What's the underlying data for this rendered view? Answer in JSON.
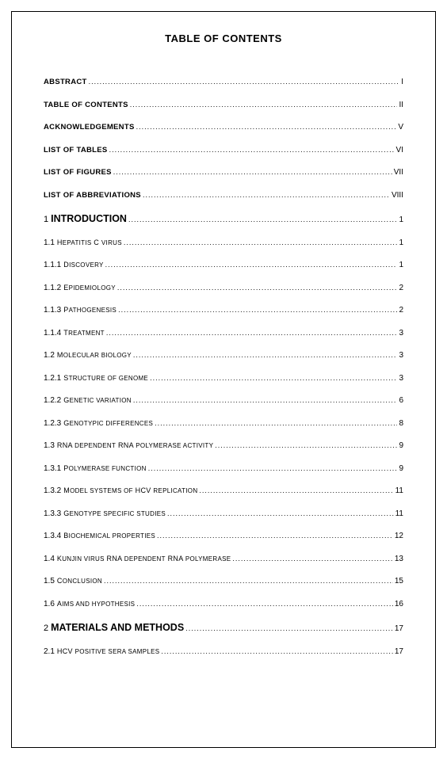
{
  "title": "TABLE OF CONTENTS",
  "entries": [
    {
      "label_html": "<span class='front'>ABSTRACT</span>",
      "page": "I"
    },
    {
      "label_html": "<span class='front'>TABLE OF CONTENTS</span>",
      "page": "II"
    },
    {
      "label_html": "<span class='front'>ACKNOWLEDGEMENTS</span>",
      "page": "V"
    },
    {
      "label_html": "<span class='front'>LIST OF TABLES</span>",
      "page": "VI"
    },
    {
      "label_html": "<span class='front'>LIST OF FIGURES</span>",
      "page": "VII"
    },
    {
      "label_html": "<span class='front'>LIST OF ABBREVIATIONS</span>",
      "page": "VIII"
    },
    {
      "label_html": "<span class='heading1-num'>1</span><span class='heading1'>INTRODUCTION</span>",
      "page": "1"
    },
    {
      "label_html": "<span class='num'>1.1</span><span class='sub'>H<span style='font-size:8px'>EPATITIS</span> C <span style='font-size:8px'>VIRUS</span></span>",
      "page": "1"
    },
    {
      "label_html": "<span class='num'>1.1.1</span><span class='sub'>D<span style='font-size:8px'>ISCOVERY</span></span>",
      "page": "1"
    },
    {
      "label_html": "<span class='num'>1.1.2</span><span class='sub'>E<span style='font-size:8px'>PIDEMIOLOGY</span></span>",
      "page": "2"
    },
    {
      "label_html": "<span class='num'>1.1.3</span><span class='sub'>P<span style='font-size:8px'>ATHOGENESIS</span></span>",
      "page": "2"
    },
    {
      "label_html": "<span class='num'>1.1.4</span><span class='sub'>T<span style='font-size:8px'>REATMENT</span></span>",
      "page": "3"
    },
    {
      "label_html": "<span class='num'>1.2</span><span class='sub'>M<span style='font-size:8px'>OLECULAR BIOLOGY</span></span>",
      "page": "3"
    },
    {
      "label_html": "<span class='num'>1.2.1</span><span class='sub'>S<span style='font-size:8px'>TRUCTURE OF GENOME</span></span>",
      "page": "3"
    },
    {
      "label_html": "<span class='num'>1.2.2</span><span class='sub'>G<span style='font-size:8px'>ENETIC VARIATION</span></span>",
      "page": "6"
    },
    {
      "label_html": "<span class='num'>1.2.3</span><span class='sub'>G<span style='font-size:8px'>ENOTYPIC DIFFERENCES</span></span>",
      "page": "8"
    },
    {
      "label_html": "<span class='num'>1.3</span><span class='sub'>RNA <span style='font-size:8px'>DEPENDENT</span> RNA <span style='font-size:8px'>POLYMERASE ACTIVITY</span></span>",
      "page": "9"
    },
    {
      "label_html": "<span class='num'>1.3.1</span><span class='sub'>P<span style='font-size:8px'>OLYMERASE  FUNCTION</span></span>",
      "page": "9"
    },
    {
      "label_html": "<span class='num'>1.3.2</span><span class='sub'>M<span style='font-size:8px'>ODEL SYSTEMS  OF</span> HCV <span style='font-size:8px'>REPLICATION</span></span>",
      "page": "11"
    },
    {
      "label_html": "<span class='num'>1.3.3</span><span class='sub'>G<span style='font-size:8px'>ENOTYPE SPECIFIC  STUDIES</span></span>",
      "page": "11"
    },
    {
      "label_html": "<span class='num'>1.3.4</span><span class='sub'>B<span style='font-size:8px'>IOCHEMICAL  PROPERTIES</span></span>",
      "page": "12"
    },
    {
      "label_html": "<span class='num'>1.4</span><span class='sub'>K<span style='font-size:8px'>UNJIN VIRUS</span> RNA <span style='font-size:8px'>DEPENDENT</span> RNA <span style='font-size:8px'>POLYMERASE</span></span>",
      "page": "13"
    },
    {
      "label_html": "<span class='num'>1.5</span><span class='sub'>C<span style='font-size:8px'>ONCLUSION</span></span>",
      "page": "15"
    },
    {
      "label_html": "<span class='num'>1.6</span><span class='sub'>A<span style='font-size:8px'>IMS AND HYPOTHESIS</span></span>",
      "page": "16"
    },
    {
      "label_html": "<span class='heading1-num'>2</span><span class='heading1'>MATERIALS AND METHODS</span>",
      "page": "17"
    },
    {
      "label_html": "<span class='num'>2.1</span><span class='sub'>HCV <span style='font-size:8px'>POSITIVE  SERA SAMPLES</span></span>",
      "page": "17"
    }
  ]
}
